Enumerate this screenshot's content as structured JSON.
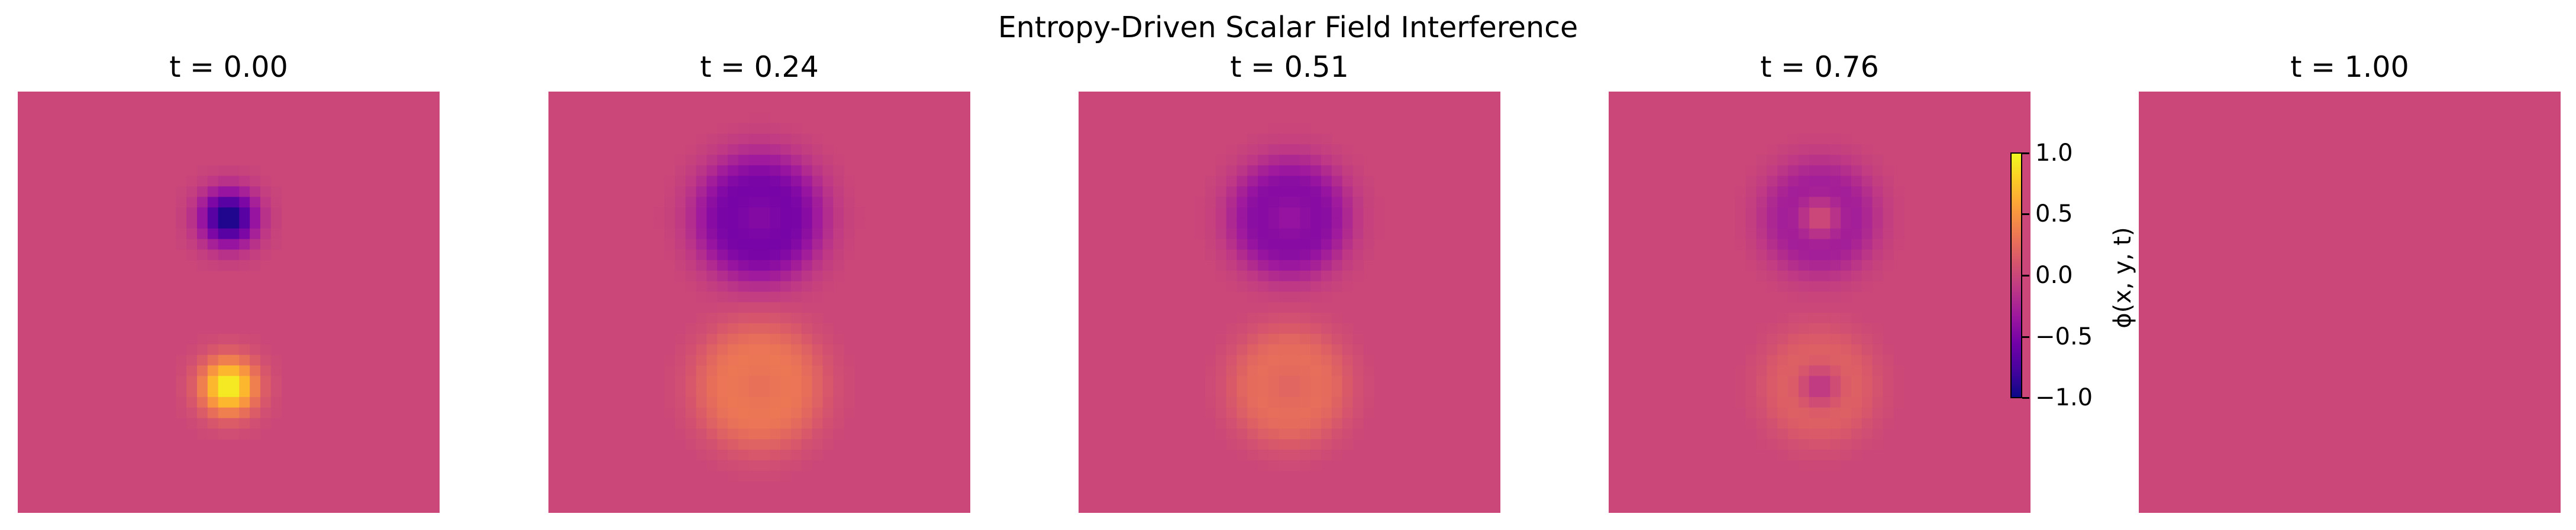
{
  "figure": {
    "suptitle": "Entropy-Driven Scalar Field Interference"
  },
  "chart_data": {
    "type": "heatmap",
    "title": "Entropy-Driven Scalar Field Interference",
    "colormap": "plasma",
    "vmin": -1.0,
    "vmax": 1.0,
    "background_value": 0.0,
    "grid_size": 40,
    "colorbar_label": "ϕ(x, y, t)",
    "colorbar_ticks": [
      "1.0",
      "0.5",
      "0.0",
      "−0.5",
      "−1.0"
    ],
    "colorbar_tick_values": [
      1.0,
      0.5,
      0.0,
      -0.5,
      -1.0
    ],
    "panels": [
      {
        "title": "t = 0.00",
        "blobs": [
          {
            "cx": 0.5,
            "cy": 0.3,
            "sign": -1,
            "peak": -1.0,
            "radius": 0.0,
            "width": 0.045
          },
          {
            "cx": 0.5,
            "cy": 0.7,
            "sign": 1,
            "peak": 1.0,
            "radius": 0.0,
            "width": 0.045
          }
        ]
      },
      {
        "title": "t = 0.24",
        "blobs": [
          {
            "cx": 0.5,
            "cy": 0.3,
            "sign": -1,
            "peak": -0.5,
            "radius": 0.085,
            "width": 0.055,
            "center": -0.25
          },
          {
            "cx": 0.5,
            "cy": 0.7,
            "sign": 1,
            "peak": 0.3,
            "radius": 0.085,
            "width": 0.055,
            "center": 0.15
          }
        ]
      },
      {
        "title": "t = 0.51",
        "blobs": [
          {
            "cx": 0.5,
            "cy": 0.3,
            "sign": -1,
            "peak": -0.42,
            "radius": 0.08,
            "width": 0.05,
            "center": -0.2
          },
          {
            "cx": 0.5,
            "cy": 0.7,
            "sign": 1,
            "peak": 0.25,
            "radius": 0.08,
            "width": 0.05,
            "center": 0.1
          }
        ]
      },
      {
        "title": "t = 0.76",
        "blobs": [
          {
            "cx": 0.5,
            "cy": 0.3,
            "sign": -1,
            "peak": -0.3,
            "radius": 0.075,
            "width": 0.05,
            "center": 0.18
          },
          {
            "cx": 0.5,
            "cy": 0.7,
            "sign": 1,
            "peak": 0.18,
            "radius": 0.075,
            "width": 0.05,
            "center": -0.2
          }
        ]
      },
      {
        "title": "t = 1.00",
        "blobs": []
      }
    ]
  }
}
